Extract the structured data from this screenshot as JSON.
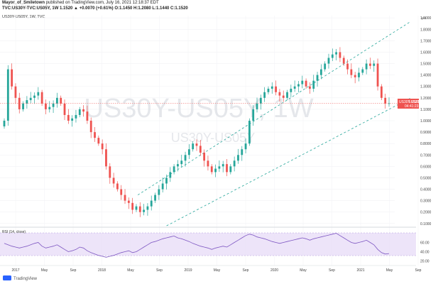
{
  "header": {
    "author": "Mayor_of_Smiletown",
    "published": "published on TradingView.com, July 16, 2021 12:18:37 EDT",
    "ohlc_line": "TVC:US30Y-TVC:US05Y, 1W 1.1520 ▲ +0.0070 (+0.61%) O:1.1450 H:1.2080 L:1.1440 C:1.1520",
    "pane_label": "US30Y-US05Y, 1W, TVC"
  },
  "watermark": {
    "large": "US30Y-US05Y, 1W",
    "small": "US30Y-US05Y"
  },
  "price_badge": {
    "symbol": "US30Y-US05Y",
    "value": "1.1520",
    "countdown": "04:41:23"
  },
  "rsi": {
    "label": "RSI (14, close)",
    "y_ticks": [
      "60.00",
      "40.00",
      "20.00"
    ]
  },
  "footer": {
    "brand": "TradingView"
  },
  "colors": {
    "up": "#26a69a",
    "down": "#ef5350",
    "channel": "#26a69a",
    "rsi_line": "#7e57c2",
    "rsi_band": "#e9ddf7",
    "badge": "#ef5350"
  },
  "chart_data": {
    "type": "candlestick",
    "title": "US30Y-US05Y, 1W, TVC",
    "x_ticks": [
      "2017",
      "May",
      "Sep",
      "2018",
      "May",
      "Sep",
      "2019",
      "May",
      "Sep",
      "2020",
      "May",
      "Sep",
      "2021",
      "May",
      "Sep"
    ],
    "y_ticks": [
      "1.9000",
      "1.8000",
      "1.7000",
      "1.6000",
      "1.5000",
      "1.4000",
      "1.3000",
      "1.2000",
      "1.1000",
      "1.0000",
      "0.9000",
      "0.8000",
      "0.7000",
      "0.6000",
      "0.5000",
      "0.4000",
      "0.3000",
      "0.2000",
      "0.1000"
    ],
    "y_unit": "pct",
    "ylim": [
      0.08,
      1.92
    ],
    "last_price": 1.152,
    "candles": [
      1.0,
      1.45,
      1.3,
      1.2,
      1.1,
      1.15,
      1.18,
      1.2,
      1.22,
      1.25,
      1.15,
      1.1,
      1.12,
      1.15,
      1.2,
      1.15,
      1.05,
      1.0,
      1.02,
      1.05,
      1.1,
      1.08,
      1.0,
      0.9,
      0.85,
      0.8,
      0.75,
      0.6,
      0.5,
      0.45,
      0.4,
      0.35,
      0.3,
      0.28,
      0.22,
      0.25,
      0.2,
      0.22,
      0.25,
      0.3,
      0.35,
      0.4,
      0.45,
      0.5,
      0.55,
      0.6,
      0.62,
      0.65,
      0.7,
      0.75,
      0.8,
      0.78,
      0.72,
      0.65,
      0.6,
      0.55,
      0.58,
      0.6,
      0.62,
      0.55,
      0.6,
      0.65,
      0.7,
      0.75,
      0.8,
      1.0,
      1.1,
      1.15,
      1.2,
      1.25,
      1.28,
      1.3,
      1.25,
      1.22,
      1.2,
      1.25,
      1.28,
      1.3,
      1.32,
      1.35,
      1.3,
      1.28,
      1.35,
      1.4,
      1.45,
      1.5,
      1.55,
      1.58,
      1.6,
      1.55,
      1.5,
      1.45,
      1.4,
      1.38,
      1.42,
      1.45,
      1.5,
      1.48,
      1.5,
      1.3,
      1.2,
      1.15,
      1.152
    ],
    "channel": {
      "upper": {
        "from": {
          "date": "Jun 2018",
          "value": 0.35
        },
        "to": {
          "date": "Jul 2021",
          "value": 1.82
        }
      },
      "lower": {
        "from": {
          "date": "Oct 2018",
          "value": 0.08
        },
        "to": {
          "date": "Jul 2021",
          "value": 1.15
        }
      }
    },
    "rsi_series": [
      58,
      55,
      52,
      50,
      48,
      50,
      52,
      55,
      58,
      60,
      52,
      48,
      50,
      52,
      55,
      50,
      45,
      40,
      42,
      45,
      50,
      48,
      42,
      38,
      35,
      32,
      30,
      28,
      30,
      32,
      35,
      38,
      40,
      42,
      38,
      40,
      45,
      50,
      55,
      60,
      62,
      65,
      68,
      70,
      72,
      74,
      70,
      68,
      65,
      62,
      58,
      55,
      52,
      50,
      48,
      45,
      48,
      50,
      52,
      50,
      55,
      60,
      65,
      70,
      75,
      78,
      76,
      72,
      70,
      68,
      65,
      62,
      60,
      58,
      60,
      62,
      64,
      66,
      68,
      70,
      68,
      65,
      68,
      70,
      72,
      74,
      76,
      78,
      80,
      75,
      70,
      65,
      60,
      58,
      60,
      62,
      65,
      60,
      55,
      45,
      38,
      35,
      36
    ]
  }
}
